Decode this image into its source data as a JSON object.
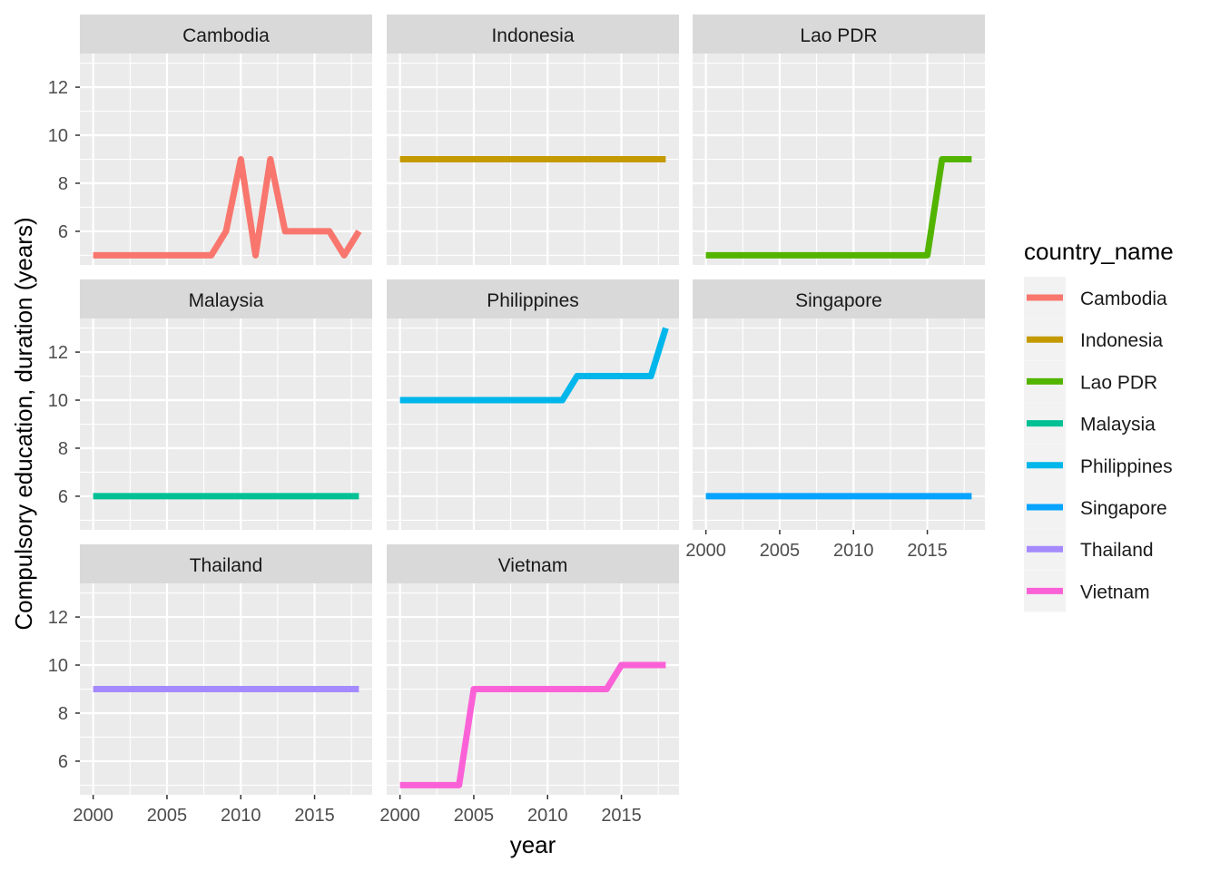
{
  "chart_data": {
    "type": "line",
    "facet_by": "country_name",
    "xlabel": "year",
    "ylabel": "Compulsory education, duration (years)",
    "xlim": [
      1999.1,
      2018.9
    ],
    "ylim": [
      4.6,
      13.4
    ],
    "x_ticks": [
      2000,
      2005,
      2010,
      2015
    ],
    "x_tick_labels": [
      "2000",
      "2005",
      "2010",
      "2015"
    ],
    "y_ticks": [
      6,
      8,
      10,
      12
    ],
    "y_tick_labels": [
      "6",
      "8",
      "10",
      "12"
    ],
    "grid": true,
    "legend": {
      "title": "country_name",
      "position": "right"
    },
    "series": [
      {
        "name": "Cambodia",
        "color": "#F8766D",
        "x": [
          2000,
          2008,
          2009,
          2010,
          2011,
          2012,
          2013,
          2016,
          2017,
          2018
        ],
        "y": [
          5,
          5,
          6,
          9,
          5,
          9,
          6,
          6,
          5,
          6
        ]
      },
      {
        "name": "Indonesia",
        "color": "#C49A00",
        "x": [
          2000,
          2018
        ],
        "y": [
          9,
          9
        ]
      },
      {
        "name": "Lao PDR",
        "color": "#53B400",
        "x": [
          2000,
          2015,
          2016,
          2018
        ],
        "y": [
          5,
          5,
          9,
          9
        ]
      },
      {
        "name": "Malaysia",
        "color": "#00C094",
        "x": [
          2000,
          2018
        ],
        "y": [
          6,
          6
        ]
      },
      {
        "name": "Philippines",
        "color": "#00B6EB",
        "x": [
          2000,
          2011,
          2012,
          2017,
          2018
        ],
        "y": [
          10,
          10,
          11,
          11,
          13
        ]
      },
      {
        "name": "Singapore",
        "color": "#06A4FF",
        "x": [
          2000,
          2018
        ],
        "y": [
          6,
          6
        ]
      },
      {
        "name": "Thailand",
        "color": "#A58AFF",
        "x": [
          2000,
          2018
        ],
        "y": [
          9,
          9
        ]
      },
      {
        "name": "Vietnam",
        "color": "#FB61D7",
        "x": [
          2000,
          2004,
          2005,
          2014,
          2015,
          2018
        ],
        "y": [
          5,
          5,
          9,
          9,
          10,
          10
        ]
      }
    ]
  }
}
